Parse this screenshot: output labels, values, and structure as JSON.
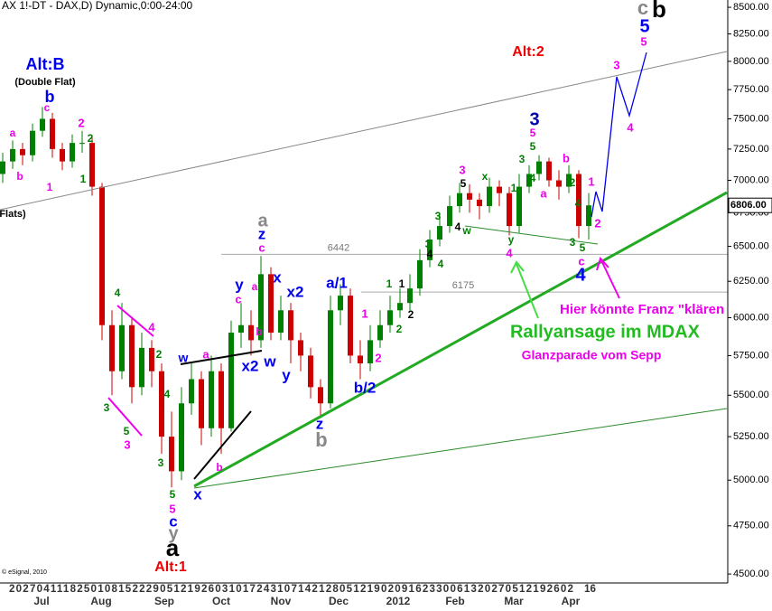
{
  "chart_data": {
    "type": "candlestick",
    "title": "AX 1!-DT - DAX,D) Dynamic,0:00-24:00",
    "copyright": "© eSignal, 2010",
    "log_scale": true,
    "up_color": "#008000",
    "down_color": "#cc0000",
    "ylim": [
      4455,
      8570
    ],
    "yticks": [
      {
        "value": 4500,
        "label": "4500.00"
      },
      {
        "value": 4750,
        "label": "4750.00"
      },
      {
        "value": 5000,
        "label": "5000.00"
      },
      {
        "value": 5250,
        "label": "5250.00"
      },
      {
        "value": 5500,
        "label": "5500.00"
      },
      {
        "value": 5750,
        "label": "5750.00"
      },
      {
        "value": 6000,
        "label": "6000.00"
      },
      {
        "value": 6250,
        "label": "6250.00"
      },
      {
        "value": 6500,
        "label": "6500.00"
      },
      {
        "value": 6750,
        "label": "6750.00"
      },
      {
        "value": 7000,
        "label": "7000.00"
      },
      {
        "value": 7250,
        "label": "7250.00"
      },
      {
        "value": 7500,
        "label": "7500.00"
      },
      {
        "value": 7750,
        "label": "7750.00"
      },
      {
        "value": 8000,
        "label": "8000.00"
      },
      {
        "value": 8250,
        "label": "8250.00"
      },
      {
        "value": 8500,
        "label": "8500.00"
      }
    ],
    "last_price": {
      "value": 6806,
      "label": "6806.00"
    },
    "day_labels": "2027041118250108152229051219260310172431071421280512190209162330061320270512192602",
    "last_day_label": "16",
    "month_labels": [
      "Jul",
      "Aug",
      "Sep",
      "Oct",
      "Nov",
      "Dec",
      "2012",
      "Feb",
      "Mar",
      "Apr"
    ],
    "open": [
      7050,
      7150,
      7250,
      7200,
      7400,
      7500,
      7250,
      7150,
      7300,
      7300,
      6950,
      5950,
      5650,
      5950,
      5550,
      5800,
      5650,
      5250,
      5050,
      5450,
      5600,
      5300,
      5650,
      5300,
      5900,
      5950,
      5850,
      6300,
      5900,
      6050,
      5850,
      5750,
      5550,
      5450,
      6050,
      6150,
      5750,
      5700,
      5850,
      5950,
      6050,
      6100,
      6200,
      6400,
      6550,
      6650,
      6800,
      6900,
      6850,
      6800,
      6950,
      6900,
      6650,
      6950,
      7050,
      7150,
      7000,
      6950,
      7050,
      6650
    ],
    "high": [
      7220,
      7320,
      7300,
      7460,
      7600,
      7550,
      7300,
      7370,
      7400,
      7350,
      6980,
      6050,
      6100,
      6000,
      5900,
      5850,
      5700,
      5400,
      5550,
      5700,
      5650,
      5750,
      5700,
      5980,
      6100,
      6050,
      6430,
      6350,
      6150,
      6100,
      5900,
      5800,
      5600,
      6150,
      6230,
      6200,
      5850,
      5950,
      6050,
      6150,
      6200,
      6300,
      6480,
      6620,
      6750,
      6880,
      6980,
      6970,
      6900,
      7020,
      7000,
      6950,
      7050,
      7120,
      7200,
      7180,
      7080,
      7120,
      7080,
      6900
    ],
    "low": [
      6980,
      7090,
      7120,
      7150,
      7350,
      7180,
      7080,
      7100,
      7220,
      6880,
      5850,
      5500,
      5600,
      5450,
      5500,
      5550,
      5150,
      4960,
      5000,
      5380,
      5200,
      5250,
      5150,
      5280,
      5800,
      5750,
      5800,
      5850,
      5850,
      5700,
      5650,
      5480,
      5360,
      5420,
      5950,
      5700,
      5600,
      5650,
      5800,
      5900,
      6000,
      6050,
      6150,
      6350,
      6500,
      6600,
      6750,
      6750,
      6700,
      6750,
      6800,
      6580,
      6600,
      6900,
      7000,
      6950,
      6850,
      6900,
      6560,
      6550
    ],
    "close": [
      7150,
      7250,
      7200,
      7400,
      7500,
      7250,
      7150,
      7300,
      7300,
      6950,
      5950,
      5650,
      5950,
      5550,
      5800,
      5650,
      5250,
      5050,
      5450,
      5600,
      5300,
      5650,
      5300,
      5900,
      5950,
      5850,
      6300,
      5900,
      6050,
      5850,
      5750,
      5550,
      5450,
      6050,
      6150,
      5750,
      5700,
      5850,
      5950,
      6050,
      6100,
      6200,
      6400,
      6550,
      6650,
      6800,
      6900,
      6850,
      6800,
      6950,
      6900,
      6650,
      6950,
      7050,
      7150,
      7000,
      6950,
      7050,
      6650,
      6806
    ],
    "reference_lines": [
      6442,
      6175
    ],
    "annotations": [
      {
        "text": "Alt:B",
        "color": "#0000ee"
      },
      {
        "text": "(Double Flat)",
        "color": "#000000"
      },
      {
        "text": "b",
        "color": "#0000ee"
      },
      {
        "text": "c",
        "color": "#ee00ee"
      },
      {
        "text": "a",
        "color": "#ee00ee"
      },
      {
        "text": "b",
        "color": "#ee00ee"
      },
      {
        "text": "1",
        "color": "#ee00ee"
      },
      {
        "text": "2",
        "color": "#ee00ee"
      },
      {
        "text": "2",
        "color": "#008000"
      },
      {
        "text": "1",
        "color": "#008000"
      },
      {
        "text": "Flats)",
        "color": "#000000"
      },
      {
        "text": "Alt:2",
        "color": "#ee0000"
      },
      {
        "text": "c",
        "color": "#888888"
      },
      {
        "text": "b",
        "color": "#000000"
      },
      {
        "text": "5",
        "color": "#0000ee"
      },
      {
        "text": "5",
        "color": "#ee00ee"
      },
      {
        "text": "3",
        "color": "#ee00ee"
      },
      {
        "text": "4",
        "color": "#ee00ee"
      },
      {
        "text": "3",
        "color": "#0000aa"
      },
      {
        "text": "5",
        "color": "#ee00ee"
      },
      {
        "text": "5",
        "color": "#008000"
      },
      {
        "text": "a",
        "color": "#888888"
      },
      {
        "text": "z",
        "color": "#0000ee"
      },
      {
        "text": "c",
        "color": "#ee00ee"
      },
      {
        "text": "y",
        "color": "#0000ee"
      },
      {
        "text": "c",
        "color": "#ee00ee"
      },
      {
        "text": "a",
        "color": "#ee00ee"
      },
      {
        "text": "x",
        "color": "#0000ee"
      },
      {
        "text": "x2",
        "color": "#0000ee"
      },
      {
        "text": "b",
        "color": "#ee00ee"
      },
      {
        "text": "w",
        "color": "#0000ee"
      },
      {
        "text": "y",
        "color": "#0000ee"
      },
      {
        "text": "x2",
        "color": "#0000ee"
      },
      {
        "text": "w",
        "color": "#0000ee"
      },
      {
        "text": "a",
        "color": "#ee00ee"
      },
      {
        "text": "a/1",
        "color": "#0000ee"
      },
      {
        "text": "1",
        "color": "#ee00ee"
      },
      {
        "text": "2",
        "color": "#ee00ee"
      },
      {
        "text": "b/2",
        "color": "#0000ee"
      },
      {
        "text": "z",
        "color": "#0000ee"
      },
      {
        "text": "b",
        "color": "#888888"
      },
      {
        "text": "4",
        "color": "#008000"
      },
      {
        "text": "4",
        "color": "#ee00ee"
      },
      {
        "text": "2",
        "color": "#008000"
      },
      {
        "text": "4",
        "color": "#008000"
      },
      {
        "text": "3",
        "color": "#008000"
      },
      {
        "text": "5",
        "color": "#008000"
      },
      {
        "text": "3",
        "color": "#ee00ee"
      },
      {
        "text": "3",
        "color": "#008000"
      },
      {
        "text": "5",
        "color": "#008000"
      },
      {
        "text": "5",
        "color": "#ee00ee"
      },
      {
        "text": "c",
        "color": "#0000ee"
      },
      {
        "text": "y",
        "color": "#888888"
      },
      {
        "text": "a",
        "color": "#000000"
      },
      {
        "text": "Alt:1",
        "color": "#ee0000"
      },
      {
        "text": "x",
        "color": "#0000ee"
      },
      {
        "text": "b",
        "color": "#ee00ee"
      },
      {
        "text": "1",
        "color": "#000000"
      },
      {
        "text": "1",
        "color": "#008000"
      },
      {
        "text": "2",
        "color": "#000000"
      },
      {
        "text": "2",
        "color": "#008000"
      },
      {
        "text": "4",
        "color": "#000000"
      },
      {
        "text": "4",
        "color": "#008000"
      },
      {
        "text": "3",
        "color": "#008000"
      },
      {
        "text": "3",
        "color": "#008000"
      },
      {
        "text": "3",
        "color": "#ee00ee"
      },
      {
        "text": "5",
        "color": "#000000"
      },
      {
        "text": "x",
        "color": "#008000"
      },
      {
        "text": "w",
        "color": "#008000"
      },
      {
        "text": "4",
        "color": "#000000"
      },
      {
        "text": "y",
        "color": "#008000"
      },
      {
        "text": "4",
        "color": "#ee00ee"
      },
      {
        "text": "1",
        "color": "#008000"
      },
      {
        "text": "3",
        "color": "#008000"
      },
      {
        "text": "4",
        "color": "#008000"
      },
      {
        "text": "b",
        "color": "#ee00ee"
      },
      {
        "text": "a",
        "color": "#ee00ee"
      },
      {
        "text": "2",
        "color": "#008000"
      },
      {
        "text": "4",
        "color": "#008000"
      },
      {
        "text": "1",
        "color": "#ee00ee"
      },
      {
        "text": "2",
        "color": "#ee00ee"
      },
      {
        "text": "3",
        "color": "#008000"
      },
      {
        "text": "5",
        "color": "#008000"
      },
      {
        "text": "c",
        "color": "#ee00ee"
      },
      {
        "text": "4",
        "color": "#0000ee"
      },
      {
        "text": "Rallyansage im MDAX",
        "color": "#22bb22"
      },
      {
        "text": "Glanzparade vom Sepp",
        "color": "#ee00ee"
      },
      {
        "text": "Hier könnte Franz \"klären",
        "color": "#ee00ee"
      }
    ]
  }
}
